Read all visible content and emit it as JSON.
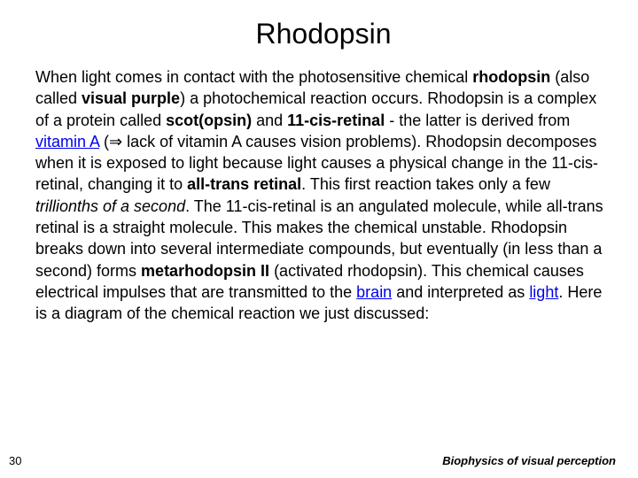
{
  "slide": {
    "title": "Rhodopsin",
    "body_parts": {
      "p1": "When light comes in contact with the photosensitive chemical ",
      "p2": "rhodopsin",
      "p3": " (also called ",
      "p4": "visual purple",
      "p5": ") a photochemical reaction occurs. Rhodopsin is a complex of a protein called ",
      "p6": "scot(opsin)",
      "p7": " and ",
      "p8": "11-cis-retinal",
      "p9": " - the latter is derived from ",
      "p10": "vitamin A",
      "p11": " (⇒ lack of vitamin A causes vision problems). Rhodopsin decomposes when it is exposed to light because light causes a physical change in the 11-cis-retinal, changing it to ",
      "p12": "all-trans retinal",
      "p13": ". This first reaction takes only a few ",
      "p14": "trillionths of a second",
      "p15": ". The 11-cis-retinal is an angulated molecule, while all-trans retinal is a straight molecule. This makes the chemical unstable. Rhodopsin breaks down into several intermediate compounds, but eventually (in less than a second) forms ",
      "p16": "metarhodopsin II",
      "p17": " (activated rhodopsin). This chemical causes electrical impulses that are transmitted to the ",
      "p18": "brain",
      "p19": " and interpreted as ",
      "p20": "light",
      "p21": ". Here is a diagram of the chemical reaction we just discussed:"
    },
    "page_number": "30",
    "footer": "Biophysics of visual perception"
  },
  "style": {
    "background_color": "#ffffff",
    "title_fontsize": 32,
    "body_fontsize": 18,
    "text_color": "#000000",
    "link_color": "#0000ee"
  }
}
